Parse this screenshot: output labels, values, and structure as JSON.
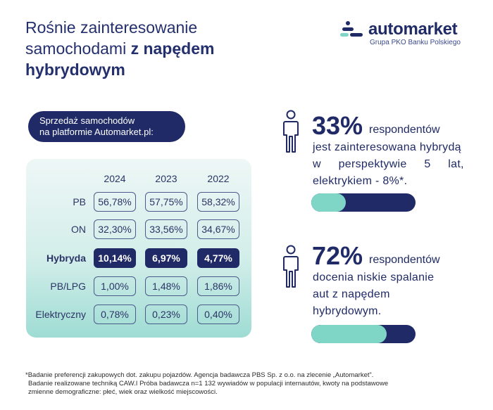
{
  "headline": {
    "line1": "Rośnie zainteresowanie",
    "line2_regular": "samochodami ",
    "line2_bold": "z napędem",
    "line3_bold": "hybrydowym"
  },
  "logo": {
    "name": "automarket",
    "subtitle": "Grupa PKO Banku Polskiego"
  },
  "sales": {
    "title_line1": "Sprzedaż samochodów",
    "title_line2": "na platformie Automarket.pl:",
    "years": [
      "2024",
      "2023",
      "2022"
    ],
    "rows": [
      {
        "label": "PB",
        "values": [
          "56,78%",
          "57,75%",
          "58,32%"
        ],
        "highlight": false
      },
      {
        "label": "ON",
        "values": [
          "32,30%",
          "33,56%",
          "34,67%"
        ],
        "highlight": false
      },
      {
        "label": "Hybryda",
        "values": [
          "10,14%",
          "6,97%",
          "4,77%"
        ],
        "highlight": true
      },
      {
        "label": "PB/LPG",
        "values": [
          "1,00%",
          "1,48%",
          "1,86%"
        ],
        "highlight": false
      },
      {
        "label": "Elektryczny",
        "values": [
          "0,78%",
          "0,23%",
          "0,40%"
        ],
        "highlight": false
      }
    ]
  },
  "stats": [
    {
      "value": "33%",
      "label": "respondentów",
      "lines": [
        "jest zainteresowana hybrydą",
        "w perspektywie 5 lat,",
        "elektrykiem - 8%*."
      ],
      "progress": 0.33
    },
    {
      "value": "72%",
      "label": "respondentów",
      "lines": [
        "docenia niskie spalanie",
        "aut z napędem",
        "hybrydowym."
      ],
      "progress": 0.72
    }
  ],
  "footnote": {
    "line1": "*Badanie preferencji zakupowych dot. zakupu pojazdów. Agencja badawcza PBS Sp. z o.o. na zlecenie „Automarket”.",
    "line2": "Badanie realizowane techniką CAW.I Próba badawcza n=1 132 wywiadów w populacji internautów, kwoty na podstawowe",
    "line3": "zmienne demograficzne: płeć, wiek oraz wielkość miejscowości."
  },
  "colors": {
    "navy": "#1f2a66",
    "mint": "#7fd6c7",
    "panel_light": "#eef7f6",
    "panel_dark": "#9edcd3"
  }
}
